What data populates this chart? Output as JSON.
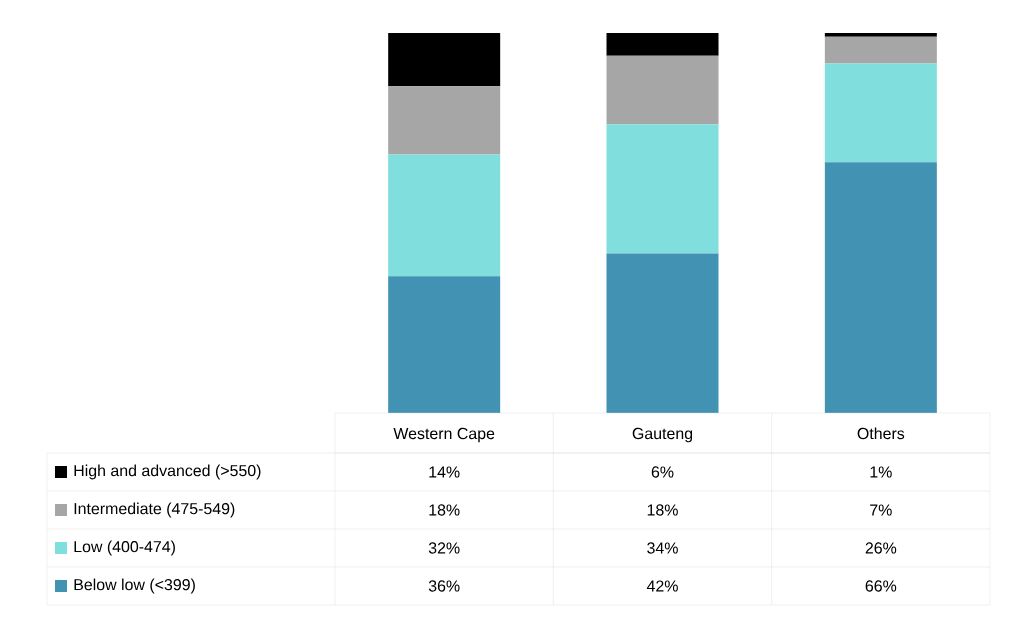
{
  "chart_data": {
    "type": "bar",
    "stacked": true,
    "ylim": [
      0,
      100
    ],
    "legend": "bottom",
    "categories": [
      "Western Cape",
      "Gauteng",
      "Others"
    ],
    "series": [
      {
        "name": "Below low (<399)",
        "color": "#4292b4",
        "values": [
          36,
          42,
          66
        ],
        "value_labels": [
          "36%",
          "42%",
          "66%"
        ]
      },
      {
        "name": "Low (400-474)",
        "color": "#80dedc",
        "values": [
          32,
          34,
          26
        ],
        "value_labels": [
          "32%",
          "34%",
          "26%"
        ]
      },
      {
        "name": "Intermediate (475-549)",
        "color": "#a6a6a6",
        "values": [
          18,
          18,
          7
        ],
        "value_labels": [
          "18%",
          "18%",
          "7%"
        ]
      },
      {
        "name": "High and advanced (>550)",
        "color": "#000000",
        "values": [
          14,
          6,
          1
        ],
        "value_labels": [
          "14%",
          "6%",
          "1%"
        ]
      }
    ]
  }
}
